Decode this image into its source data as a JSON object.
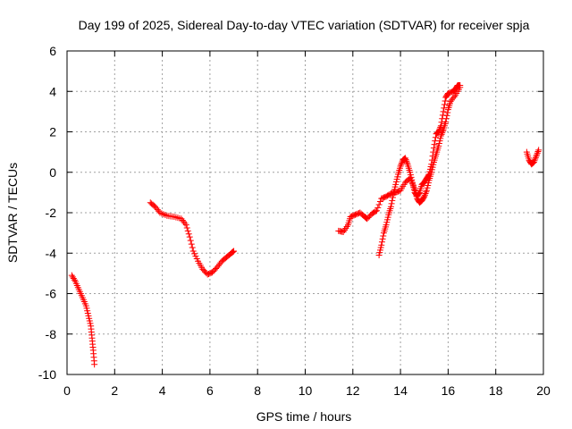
{
  "chart_data": {
    "type": "scatter",
    "title": "Day 199 of 2025, Sidereal Day-to-day VTEC variation (SDTVAR) for receiver spja",
    "xlabel": "GPS time / hours",
    "ylabel": "SDTVAR / TECUs",
    "xlim": [
      0,
      20
    ],
    "ylim": [
      -10,
      6
    ],
    "xticks": [
      0,
      2,
      4,
      6,
      8,
      10,
      12,
      14,
      16,
      18,
      20
    ],
    "xtick_labels": [
      "0",
      "2",
      "4",
      "6",
      "8",
      "10",
      "12",
      "14",
      "16",
      "18",
      "20"
    ],
    "yticks": [
      -10,
      -8,
      -6,
      -4,
      -2,
      0,
      2,
      4,
      6
    ],
    "ytick_labels": [
      "-10",
      "-8",
      "-6",
      "-4",
      "-2",
      "0",
      "2",
      "4",
      "6"
    ],
    "grid": true,
    "marker": "+",
    "marker_color": "#ff0000",
    "series": [
      {
        "name": "SDTVAR",
        "segments": [
          [
            [
              0.2,
              -5.1
            ],
            [
              0.35,
              -5.4
            ],
            [
              0.5,
              -5.8
            ],
            [
              0.65,
              -6.2
            ],
            [
              0.8,
              -6.6
            ],
            [
              0.9,
              -7.1
            ],
            [
              1.0,
              -7.6
            ],
            [
              1.05,
              -8.2
            ],
            [
              1.1,
              -8.8
            ],
            [
              1.15,
              -9.5
            ]
          ],
          [
            [
              3.5,
              -1.5
            ],
            [
              3.7,
              -1.7
            ],
            [
              3.9,
              -2.0
            ],
            [
              4.2,
              -2.15
            ],
            [
              4.5,
              -2.2
            ],
            [
              4.8,
              -2.3
            ],
            [
              5.0,
              -2.6
            ],
            [
              5.15,
              -3.2
            ],
            [
              5.3,
              -3.9
            ],
            [
              5.5,
              -4.4
            ],
            [
              5.7,
              -4.8
            ],
            [
              5.9,
              -5.05
            ],
            [
              6.1,
              -4.95
            ],
            [
              6.3,
              -4.7
            ],
            [
              6.5,
              -4.4
            ],
            [
              6.7,
              -4.2
            ],
            [
              6.9,
              -4.0
            ],
            [
              7.0,
              -3.9
            ]
          ],
          [
            [
              11.4,
              -2.9
            ],
            [
              11.6,
              -2.95
            ],
            [
              11.8,
              -2.6
            ],
            [
              11.9,
              -2.2
            ],
            [
              12.1,
              -2.1
            ],
            [
              12.3,
              -2.0
            ],
            [
              12.5,
              -2.2
            ],
            [
              12.6,
              -2.3
            ],
            [
              12.8,
              -2.05
            ],
            [
              13.0,
              -1.9
            ],
            [
              13.2,
              -1.3
            ],
            [
              13.4,
              -1.2
            ],
            [
              13.6,
              -1.05
            ],
            [
              13.8,
              -1.0
            ],
            [
              14.0,
              -0.9
            ],
            [
              14.2,
              -0.5
            ],
            [
              14.4,
              -0.3
            ],
            [
              14.6,
              -0.8
            ],
            [
              14.7,
              -1.3
            ],
            [
              14.8,
              -1.5
            ],
            [
              14.9,
              -1.4
            ],
            [
              15.0,
              -1.2
            ],
            [
              15.1,
              -0.9
            ],
            [
              15.2,
              -0.4
            ],
            [
              15.3,
              0.0
            ],
            [
              15.4,
              0.5
            ],
            [
              15.5,
              0.9
            ],
            [
              15.6,
              1.3
            ],
            [
              15.7,
              1.8
            ],
            [
              15.8,
              2.1
            ],
            [
              15.9,
              2.5
            ],
            [
              16.0,
              3.1
            ],
            [
              16.1,
              3.5
            ],
            [
              16.3,
              3.8
            ],
            [
              16.5,
              4.2
            ]
          ],
          [
            [
              13.1,
              -4.1
            ],
            [
              13.2,
              -3.6
            ],
            [
              13.3,
              -3.0
            ],
            [
              13.4,
              -2.6
            ],
            [
              13.5,
              -2.1
            ],
            [
              13.6,
              -1.7
            ],
            [
              13.7,
              -1.1
            ],
            [
              13.8,
              -0.6
            ],
            [
              13.9,
              -0.1
            ],
            [
              14.0,
              0.3
            ],
            [
              14.1,
              0.6
            ],
            [
              14.2,
              0.7
            ],
            [
              14.3,
              0.4
            ],
            [
              14.4,
              0.0
            ],
            [
              14.5,
              -0.5
            ],
            [
              14.6,
              -1.0
            ],
            [
              14.7,
              -1.2
            ],
            [
              14.8,
              -1.0
            ],
            [
              14.9,
              -0.6
            ],
            [
              15.0,
              -0.5
            ],
            [
              15.1,
              -0.3
            ],
            [
              15.2,
              -0.1
            ],
            [
              15.3,
              0.4
            ],
            [
              15.4,
              1.2
            ],
            [
              15.5,
              1.9
            ],
            [
              15.6,
              2.0
            ],
            [
              15.7,
              2.3
            ],
            [
              15.8,
              3.0
            ],
            [
              15.9,
              3.7
            ],
            [
              16.0,
              3.9
            ],
            [
              16.2,
              4.0
            ],
            [
              16.3,
              4.1
            ],
            [
              16.4,
              4.3
            ],
            [
              16.5,
              4.3
            ]
          ],
          [
            [
              19.3,
              1.0
            ],
            [
              19.4,
              0.6
            ],
            [
              19.5,
              0.4
            ],
            [
              19.6,
              0.5
            ],
            [
              19.7,
              0.8
            ],
            [
              19.8,
              1.1
            ]
          ]
        ]
      }
    ]
  }
}
